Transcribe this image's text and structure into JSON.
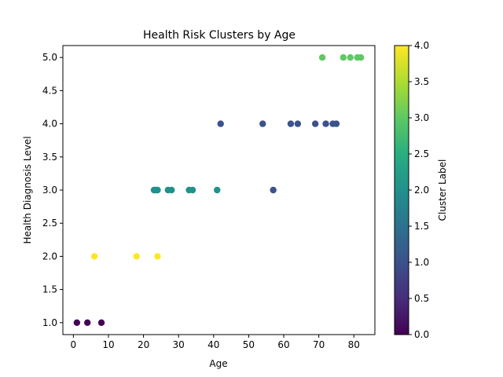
{
  "chart_data": {
    "type": "scatter",
    "title": "Health Risk Clusters by Age",
    "xlabel": "Age",
    "ylabel": "Health Diagnosis Level",
    "xlim": [
      -3,
      86
    ],
    "ylim": [
      0.82,
      5.18
    ],
    "xticks": [
      0,
      10,
      20,
      30,
      40,
      50,
      60,
      70,
      80
    ],
    "yticks": [
      1.0,
      1.5,
      2.0,
      2.5,
      3.0,
      3.5,
      4.0,
      4.5,
      5.0
    ],
    "grid": false,
    "colorbar": {
      "label": "Cluster Label",
      "range": [
        0.0,
        4.0
      ],
      "ticks": [
        0.0,
        0.5,
        1.0,
        1.5,
        2.0,
        2.5,
        3.0,
        3.5,
        4.0
      ],
      "colormap": "viridis"
    },
    "points": [
      {
        "x": 1,
        "y": 1.0,
        "cluster": 0
      },
      {
        "x": 4,
        "y": 1.0,
        "cluster": 0
      },
      {
        "x": 8,
        "y": 1.0,
        "cluster": 0
      },
      {
        "x": 6,
        "y": 2.0,
        "cluster": 4
      },
      {
        "x": 18,
        "y": 2.0,
        "cluster": 4
      },
      {
        "x": 24,
        "y": 2.0,
        "cluster": 4
      },
      {
        "x": 23,
        "y": 3.0,
        "cluster": 2
      },
      {
        "x": 23.5,
        "y": 3.0,
        "cluster": 2
      },
      {
        "x": 24,
        "y": 3.0,
        "cluster": 2
      },
      {
        "x": 27,
        "y": 3.0,
        "cluster": 2
      },
      {
        "x": 28,
        "y": 3.0,
        "cluster": 2
      },
      {
        "x": 33,
        "y": 3.0,
        "cluster": 2
      },
      {
        "x": 34,
        "y": 3.0,
        "cluster": 2
      },
      {
        "x": 41,
        "y": 3.0,
        "cluster": 2
      },
      {
        "x": 57,
        "y": 3.0,
        "cluster": 1
      },
      {
        "x": 42,
        "y": 4.0,
        "cluster": 1
      },
      {
        "x": 54,
        "y": 4.0,
        "cluster": 1
      },
      {
        "x": 62,
        "y": 4.0,
        "cluster": 1
      },
      {
        "x": 64,
        "y": 4.0,
        "cluster": 1
      },
      {
        "x": 69,
        "y": 4.0,
        "cluster": 1
      },
      {
        "x": 72,
        "y": 4.0,
        "cluster": 1
      },
      {
        "x": 74,
        "y": 4.0,
        "cluster": 1
      },
      {
        "x": 75,
        "y": 4.0,
        "cluster": 1
      },
      {
        "x": 71,
        "y": 5.0,
        "cluster": 3
      },
      {
        "x": 77,
        "y": 5.0,
        "cluster": 3
      },
      {
        "x": 79,
        "y": 5.0,
        "cluster": 3
      },
      {
        "x": 81,
        "y": 5.0,
        "cluster": 3
      },
      {
        "x": 82,
        "y": 5.0,
        "cluster": 3
      }
    ]
  }
}
